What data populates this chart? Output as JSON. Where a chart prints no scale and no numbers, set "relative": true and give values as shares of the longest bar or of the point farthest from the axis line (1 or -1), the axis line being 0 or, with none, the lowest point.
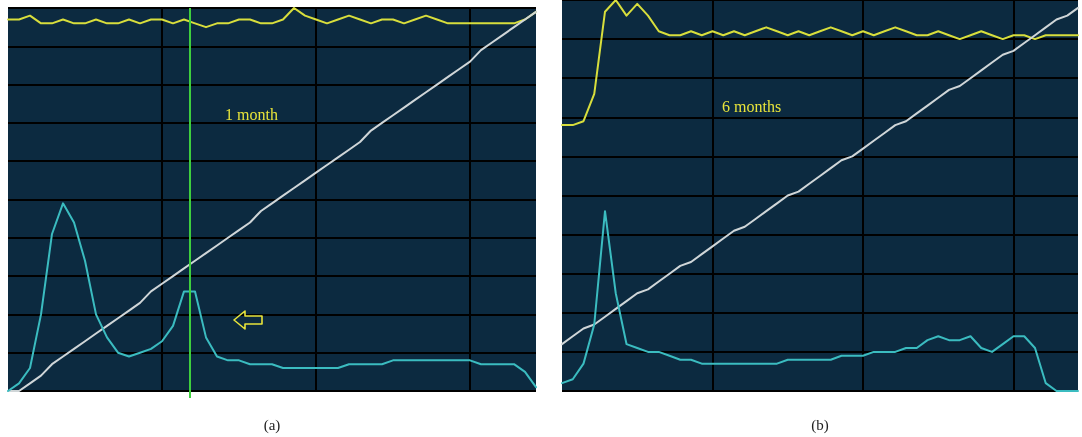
{
  "chart_data": [
    {
      "type": "line",
      "relative": true,
      "xlabel": "(a)",
      "annotations": [
        "1 month"
      ],
      "grid": true,
      "marker": "none",
      "line_style": "solid",
      "categories": [
        null,
        null,
        null,
        null,
        null,
        null,
        null,
        null,
        null,
        null,
        null,
        null,
        null,
        null,
        null,
        null,
        null,
        null,
        null,
        null,
        null,
        null,
        null,
        null,
        null,
        null,
        null,
        null,
        null,
        null,
        null,
        null,
        null,
        null,
        null,
        null,
        null,
        null,
        null,
        null,
        null,
        null,
        null,
        null,
        null,
        null,
        null,
        null,
        null
      ],
      "series": [
        {
          "color": "#d8de3c",
          "values": [
            0.97,
            0.97,
            0.98,
            0.96,
            0.96,
            0.97,
            0.96,
            0.96,
            0.97,
            0.96,
            0.96,
            0.97,
            0.96,
            0.97,
            0.97,
            0.96,
            0.97,
            0.96,
            0.95,
            0.96,
            0.96,
            0.97,
            0.97,
            0.96,
            0.96,
            0.97,
            1.0,
            0.98,
            0.97,
            0.96,
            0.97,
            0.98,
            0.97,
            0.96,
            0.97,
            0.97,
            0.96,
            0.97,
            0.98,
            0.97,
            0.96,
            0.96,
            0.96,
            0.96,
            0.96,
            0.96,
            0.96,
            0.97,
            0.99
          ]
        },
        {
          "color": "#d0d6d8",
          "values": [
            0,
            0,
            0.02,
            0.04,
            0.07,
            0.09,
            0.11,
            0.13,
            0.15,
            0.17,
            0.19,
            0.21,
            0.23,
            0.26,
            0.28,
            0.3,
            0.32,
            0.34,
            0.36,
            0.38,
            0.4,
            0.42,
            0.44,
            0.47,
            0.49,
            0.51,
            0.53,
            0.55,
            0.57,
            0.59,
            0.61,
            0.63,
            0.65,
            0.68,
            0.7,
            0.72,
            0.74,
            0.76,
            0.78,
            0.8,
            0.82,
            0.84,
            0.86,
            0.89,
            0.91,
            0.93,
            0.95,
            0.97,
            0.99
          ]
        },
        {
          "color": "#3bbcc0",
          "values": [
            0,
            0.02,
            0.06,
            0.2,
            0.41,
            0.49,
            0.44,
            0.34,
            0.2,
            0.14,
            0.1,
            0.09,
            0.1,
            0.11,
            0.13,
            0.17,
            0.26,
            0.26,
            0.14,
            0.09,
            0.08,
            0.08,
            0.07,
            0.07,
            0.07,
            0.06,
            0.06,
            0.06,
            0.06,
            0.06,
            0.06,
            0.07,
            0.07,
            0.07,
            0.07,
            0.08,
            0.08,
            0.08,
            0.08,
            0.08,
            0.08,
            0.08,
            0.08,
            0.07,
            0.07,
            0.07,
            0.07,
            0.05,
            0.01
          ]
        }
      ]
    },
    {
      "type": "line",
      "relative": true,
      "xlabel": "(b)",
      "annotations": [
        "6 months"
      ],
      "grid": true,
      "marker": "none",
      "line_style": "solid",
      "categories": [
        null,
        null,
        null,
        null,
        null,
        null,
        null,
        null,
        null,
        null,
        null,
        null,
        null,
        null,
        null,
        null,
        null,
        null,
        null,
        null,
        null,
        null,
        null,
        null,
        null,
        null,
        null,
        null,
        null,
        null,
        null,
        null,
        null,
        null,
        null,
        null,
        null,
        null,
        null,
        null,
        null,
        null,
        null,
        null,
        null,
        null,
        null,
        null,
        null
      ],
      "series": [
        {
          "color": "#d8de3c",
          "values": [
            0.68,
            0.68,
            0.69,
            0.76,
            0.97,
            1.0,
            0.96,
            0.99,
            0.96,
            0.92,
            0.91,
            0.91,
            0.92,
            0.91,
            0.92,
            0.91,
            0.92,
            0.91,
            0.92,
            0.93,
            0.92,
            0.91,
            0.92,
            0.91,
            0.92,
            0.93,
            0.92,
            0.91,
            0.92,
            0.91,
            0.92,
            0.93,
            0.92,
            0.91,
            0.91,
            0.92,
            0.91,
            0.9,
            0.91,
            0.92,
            0.91,
            0.9,
            0.91,
            0.91,
            0.9,
            0.91,
            0.91,
            0.91,
            0.91
          ]
        },
        {
          "color": "#d0d6d8",
          "values": [
            0.12,
            0.14,
            0.16,
            0.17,
            0.19,
            0.21,
            0.23,
            0.25,
            0.26,
            0.28,
            0.3,
            0.32,
            0.33,
            0.35,
            0.37,
            0.39,
            0.41,
            0.42,
            0.44,
            0.46,
            0.48,
            0.5,
            0.51,
            0.53,
            0.55,
            0.57,
            0.59,
            0.6,
            0.62,
            0.64,
            0.66,
            0.68,
            0.69,
            0.71,
            0.73,
            0.75,
            0.77,
            0.78,
            0.8,
            0.82,
            0.84,
            0.86,
            0.87,
            0.89,
            0.91,
            0.93,
            0.95,
            0.96,
            0.98
          ]
        },
        {
          "color": "#3bbcc0",
          "values": [
            0.02,
            0.03,
            0.07,
            0.17,
            0.46,
            0.25,
            0.12,
            0.11,
            0.1,
            0.1,
            0.09,
            0.08,
            0.08,
            0.07,
            0.07,
            0.07,
            0.07,
            0.07,
            0.07,
            0.07,
            0.07,
            0.08,
            0.08,
            0.08,
            0.08,
            0.08,
            0.09,
            0.09,
            0.09,
            0.1,
            0.1,
            0.1,
            0.11,
            0.11,
            0.13,
            0.14,
            0.13,
            0.13,
            0.14,
            0.11,
            0.1,
            0.12,
            0.14,
            0.14,
            0.11,
            0.02,
            0,
            0,
            0
          ]
        }
      ]
    }
  ]
}
